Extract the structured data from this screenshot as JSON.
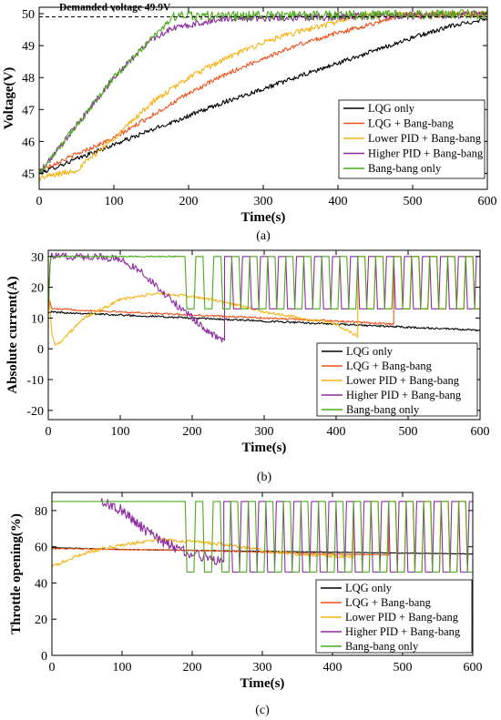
{
  "colors": {
    "lqg_only": "#000000",
    "lqg_bangbang": "#f0501a",
    "lower_pid_bangbang": "#f5b417",
    "higher_pid_bangbang": "#8e2aa0",
    "bangbang_only": "#4aac1a"
  },
  "chart_data": [
    {
      "type": "line",
      "caption": "(a)",
      "xlabel": "Time(s)",
      "ylabel": "Voltage(V)",
      "xlim": [
        0,
        600
      ],
      "ylim": [
        44.5,
        50.2
      ],
      "xticks": [
        "0",
        "100",
        "200",
        "300",
        "400",
        "500",
        "600"
      ],
      "yticks": [
        "45",
        "46",
        "47",
        "48",
        "49",
        "50"
      ],
      "legend_position": "bottom-right",
      "annotation": "Demanded voltage 49.9V",
      "reference_line": {
        "y": 49.9,
        "style": "dashed"
      },
      "series": [
        {
          "name": "LQG only",
          "x": [
            0,
            50,
            100,
            150,
            200,
            250,
            300,
            350,
            400,
            450,
            500,
            550,
            600
          ],
          "y": [
            45.0,
            45.45,
            45.9,
            46.35,
            46.8,
            47.25,
            47.65,
            48.05,
            48.45,
            48.85,
            49.25,
            49.6,
            49.85
          ],
          "noise": 0.07
        },
        {
          "name": "LQG + Bang-bang",
          "x": [
            0,
            50,
            100,
            150,
            200,
            250,
            300,
            350,
            400,
            450,
            480,
            600
          ],
          "y": [
            45.1,
            45.6,
            46.1,
            46.8,
            47.5,
            48.1,
            48.6,
            49.05,
            49.4,
            49.7,
            49.95,
            49.98
          ],
          "noise": 0.07,
          "osc_from": 480,
          "osc_amp": 0.1
        },
        {
          "name": "Lower PID + Bang-bang",
          "x": [
            0,
            50,
            100,
            150,
            200,
            250,
            300,
            350,
            400,
            430,
            600
          ],
          "y": [
            44.85,
            45.1,
            46.1,
            47.2,
            48.0,
            48.6,
            49.1,
            49.45,
            49.75,
            49.95,
            49.98
          ],
          "noise": 0.09,
          "osc_from": 430,
          "osc_amp": 0.1
        },
        {
          "name": "Higher PID + Bang-bang",
          "x": [
            0,
            50,
            100,
            150,
            180,
            220,
            245,
            600
          ],
          "y": [
            45.0,
            46.5,
            48.0,
            49.2,
            49.55,
            49.72,
            49.85,
            49.98
          ],
          "noise": 0.1,
          "osc_from": 245,
          "osc_amp": 0.12
        },
        {
          "name": "Bang-bang only",
          "x": [
            0,
            50,
            100,
            150,
            180,
            600
          ],
          "y": [
            45.0,
            46.5,
            48.0,
            49.2,
            49.92,
            49.98
          ],
          "noise": 0.1,
          "osc_from": 180,
          "osc_amp": 0.15
        }
      ]
    },
    {
      "type": "line",
      "caption": "(b)",
      "xlabel": "Time(s)",
      "ylabel": "Absolute current(A)",
      "xlim": [
        0,
        600
      ],
      "ylim": [
        -23,
        32
      ],
      "xticks": [
        "0",
        "100",
        "200",
        "300",
        "400",
        "500",
        "600"
      ],
      "yticks": [
        "-20",
        "-10",
        "0",
        "10",
        "20",
        "30"
      ],
      "legend_position": "bottom-right",
      "series": [
        {
          "name": "LQG only",
          "x": [
            0,
            100,
            200,
            300,
            400,
            500,
            600
          ],
          "y": [
            12,
            11,
            10,
            9,
            8,
            7,
            6
          ],
          "noise": 0.3
        },
        {
          "name": "LQG + Bang-bang",
          "x": [
            0,
            5,
            100,
            200,
            300,
            400,
            480
          ],
          "y": [
            17,
            13,
            12,
            11,
            10,
            9,
            8
          ],
          "noise": 0.3,
          "square_from": 480,
          "square_high": 30,
          "square_low": 13,
          "square_period": 25
        },
        {
          "name": "Lower PID + Bang-bang",
          "x": [
            0,
            5,
            10,
            20,
            50,
            100,
            150,
            200,
            250,
            300,
            350,
            400,
            430
          ],
          "y": [
            20,
            5,
            1,
            3,
            10,
            16,
            18,
            17,
            15,
            12,
            10,
            8,
            4
          ],
          "noise": 0.5,
          "square_from": 430,
          "square_high": 30,
          "square_low": 13,
          "square_period": 25
        },
        {
          "name": "Higher PID + Bang-bang",
          "x": [
            0,
            3,
            70,
            100,
            130,
            160,
            200,
            220,
            240,
            245
          ],
          "y": [
            15,
            30,
            30,
            29,
            25,
            18,
            10,
            6,
            3,
            3
          ],
          "noise": 1.2,
          "square_from": 245,
          "square_high": 30,
          "square_low": 13,
          "square_period": 25
        },
        {
          "name": "Bang-bang only",
          "x": [
            0,
            3,
            180
          ],
          "y": [
            12,
            30,
            30
          ],
          "noise": 0.2,
          "square_from": 180,
          "square_high": 30,
          "square_low": 13,
          "square_period": 25
        }
      ]
    },
    {
      "type": "line",
      "caption": "(c)",
      "xlabel": "Time(s)",
      "ylabel": "Throttle opening(%)",
      "xlim": [
        0,
        600
      ],
      "ylim": [
        0,
        90
      ],
      "xticks": [
        "0",
        "100",
        "200",
        "300",
        "400",
        "500",
        "600"
      ],
      "yticks": [
        "0",
        "20",
        "40",
        "60",
        "80"
      ],
      "legend_position": "bottom-right",
      "series": [
        {
          "name": "LQG only",
          "x": [
            0,
            100,
            200,
            300,
            400,
            500,
            600
          ],
          "y": [
            59.5,
            58.5,
            58.0,
            57.5,
            57.0,
            56.5,
            56.0
          ],
          "noise": 0.15
        },
        {
          "name": "LQG + Bang-bang",
          "x": [
            0,
            100,
            200,
            300,
            400,
            480
          ],
          "y": [
            59.0,
            58.5,
            58.0,
            57.0,
            56.0,
            55.5
          ],
          "noise": 0.3,
          "square_from": 480,
          "square_high": 85,
          "square_low": 46,
          "square_period": 25
        },
        {
          "name": "Lower PID + Bang-bang",
          "x": [
            0,
            50,
            100,
            150,
            200,
            250,
            300,
            350,
            400,
            430
          ],
          "y": [
            49,
            57,
            61,
            64,
            63,
            61,
            58,
            56,
            55,
            54
          ],
          "noise": 1.0,
          "square_from": 430,
          "square_high": 85,
          "square_low": 46,
          "square_period": 25
        },
        {
          "name": "Higher PID + Bang-bang",
          "x": [
            70,
            100,
            130,
            160,
            200,
            245
          ],
          "y": [
            85,
            80,
            70,
            62,
            56,
            52
          ],
          "noise": 3.0,
          "square_from": 245,
          "square_high": 85,
          "square_low": 46,
          "square_period": 25
        },
        {
          "name": "Bang-bang only",
          "x": [
            0,
            180
          ],
          "y": [
            85,
            85
          ],
          "noise": 0,
          "square_from": 180,
          "square_high": 85,
          "square_low": 46,
          "square_period": 25
        }
      ]
    }
  ]
}
